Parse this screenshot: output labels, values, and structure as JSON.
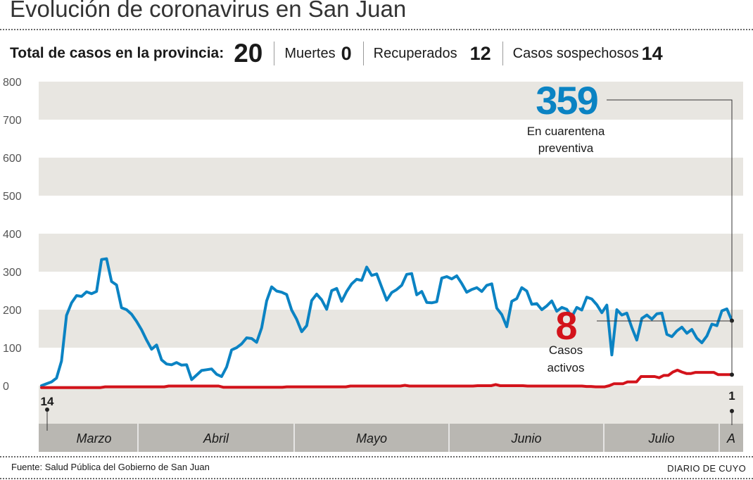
{
  "header": {
    "title": "Evolución de coronavirus en San Juan",
    "total_label": "Total de casos en la provincia:",
    "total_value": "20",
    "deaths_label": "Muertes",
    "deaths_value": "0",
    "recovered_label": "Recuperados",
    "recovered_value": "12",
    "suspected_label": "Casos sospechosos",
    "suspected_value": "14"
  },
  "chart_data": {
    "type": "line",
    "y_ticks": [
      "800",
      "700",
      "600",
      "500",
      "400",
      "300",
      "200",
      "100",
      "0"
    ],
    "ylim": [
      0,
      800
    ],
    "grid": "alternating horizontal bands",
    "months": [
      "Marzo",
      "Abril",
      "Mayo",
      "Junio",
      "Julio",
      "A"
    ],
    "series": [
      {
        "name": "En cuarentena preventiva",
        "color": "#0b83c3",
        "callout_value": "359",
        "callout_label_line1": "En cuarentena",
        "callout_label_line2": "preventiva",
        "values": [
          0,
          5,
          10,
          20,
          65,
          185,
          218,
          237,
          235,
          247,
          242,
          248,
          332,
          334,
          274,
          265,
          205,
          200,
          188,
          169,
          147,
          120,
          96,
          107,
          68,
          57,
          55,
          61,
          54,
          55,
          16,
          28,
          40,
          42,
          44,
          30,
          24,
          49,
          94,
          100,
          110,
          126,
          124,
          114,
          152,
          223,
          260,
          249,
          246,
          240,
          199,
          175,
          142,
          158,
          224,
          241,
          226,
          201,
          250,
          256,
          222,
          248,
          268,
          280,
          277,
          312,
          290,
          294,
          259,
          225,
          245,
          253,
          264,
          293,
          295,
          239,
          248,
          219,
          218,
          221,
          283,
          287,
          281,
          289,
          269,
          246,
          253,
          258,
          248,
          264,
          268,
          204,
          187,
          155,
          222,
          229,
          258,
          249,
          214,
          216,
          200,
          210,
          223,
          196,
          206,
          201,
          181,
          206,
          199,
          233,
          228,
          213,
          192,
          212,
          81,
          200,
          186,
          191,
          153,
          120,
          177,
          186,
          175,
          189,
          191,
          135,
          129,
          144,
          154,
          138,
          148,
          125,
          113,
          131,
          162,
          158,
          197,
          202,
          171
        ]
      },
      {
        "name": "Casos activos",
        "color": "#d3131b",
        "callout_value": "8",
        "callout_label_line1": "Casos",
        "callout_label_line2": "activos",
        "start_label": "14",
        "end_label": "1",
        "values": [
          -5,
          -5,
          -5,
          -5,
          -5,
          -5,
          -5,
          -5,
          -5,
          -5,
          -5,
          -5,
          -5,
          -5,
          -3,
          -3,
          -3,
          -3,
          -3,
          -3,
          -3,
          -3,
          -3,
          -3,
          -3,
          -3,
          -3,
          -3,
          -1,
          -1,
          -1,
          -1,
          -1,
          -1,
          -1,
          -1,
          -1,
          -1,
          -1,
          -1,
          -4,
          -4,
          -4,
          -4,
          -4,
          -4,
          -4,
          -4,
          -4,
          -4,
          -4,
          -4,
          -4,
          -4,
          -3,
          -3,
          -3,
          -3,
          -3,
          -3,
          -3,
          -3,
          -3,
          -3,
          -3,
          -3,
          -3,
          -3,
          -1,
          -1,
          -1,
          -1,
          -1,
          -1,
          -1,
          -1,
          -1,
          -1,
          -1,
          -1,
          1,
          -1,
          -1,
          -1,
          -1,
          -1,
          -1,
          -1,
          -1,
          -1,
          -1,
          -1,
          -1,
          -1,
          -1,
          -1,
          0,
          0,
          0,
          0,
          3,
          0,
          0,
          0,
          0,
          0,
          0,
          -1,
          -1,
          -1,
          -1,
          -1,
          -1,
          -1,
          -1,
          -1,
          -1,
          -1,
          -1,
          -1,
          -2,
          -2,
          -3,
          -3,
          -3,
          0,
          5,
          5,
          5,
          10,
          10,
          10,
          24,
          24,
          24,
          24,
          21,
          27,
          27,
          36,
          41,
          36,
          32,
          32,
          35,
          35,
          35,
          35,
          35,
          29,
          29,
          29,
          29
        ]
      }
    ]
  },
  "footer": {
    "source": "Fuente: Salud Pública del Gobierno de San Juan",
    "brand": "DIARIO DE CUYO"
  }
}
